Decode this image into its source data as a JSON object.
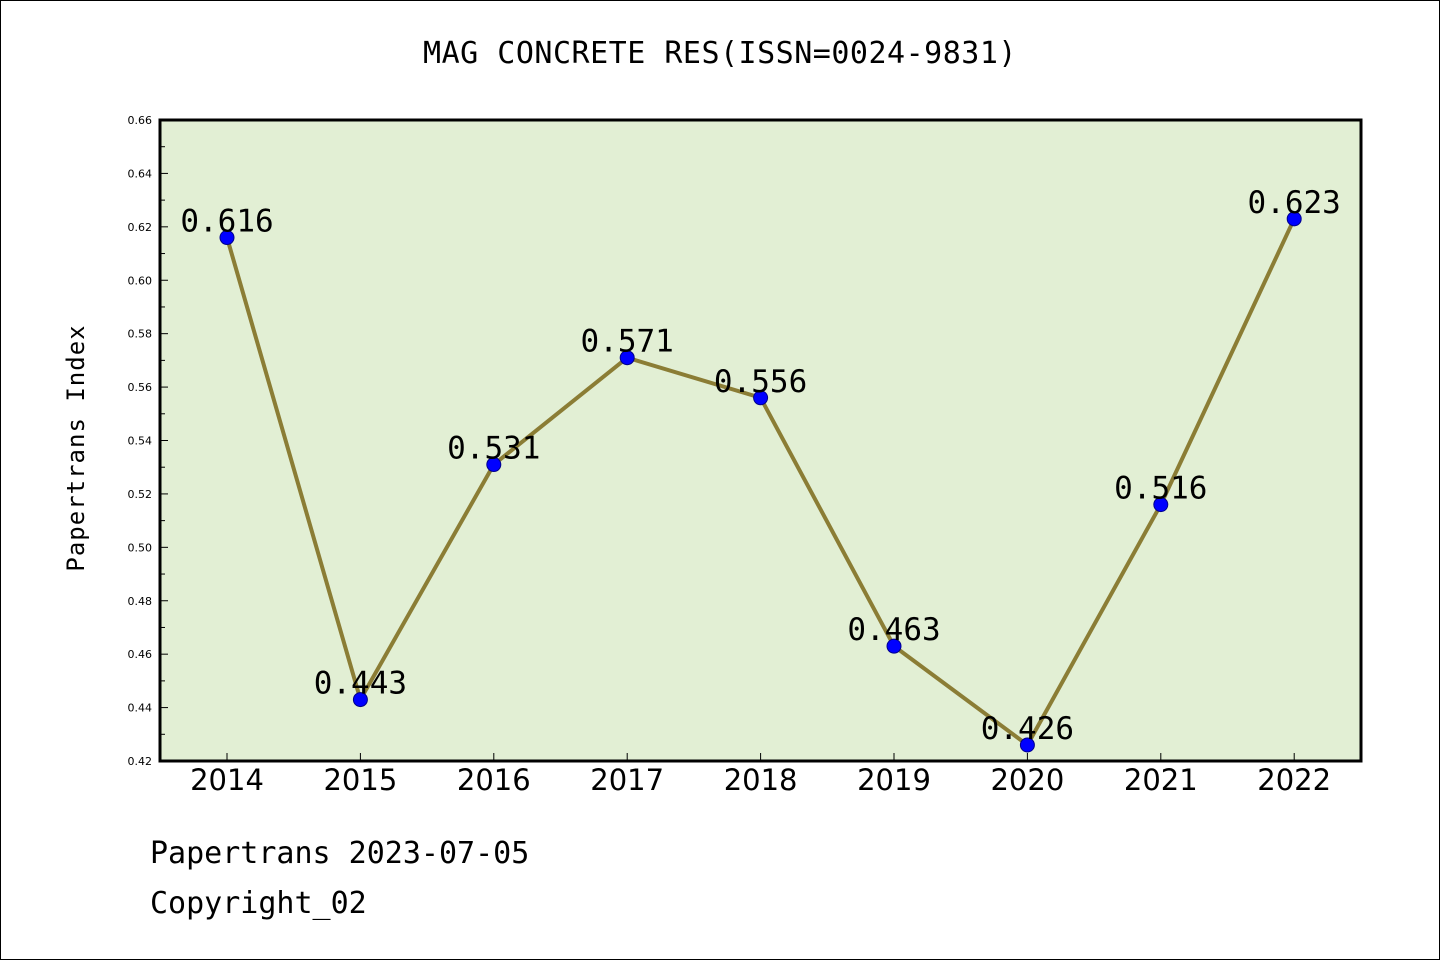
{
  "chart_data": {
    "type": "line",
    "title": "MAG CONCRETE RES(ISSN=0024-9831)",
    "xlabel": "",
    "ylabel": "Papertrans Index",
    "categories": [
      "2014",
      "2015",
      "2016",
      "2017",
      "2018",
      "2019",
      "2020",
      "2021",
      "2022"
    ],
    "values": [
      0.616,
      0.443,
      0.531,
      0.571,
      0.556,
      0.463,
      0.426,
      0.516,
      0.623
    ],
    "data_labels": [
      "0.616",
      "0.443",
      "0.531",
      "0.571",
      "0.556",
      "0.463",
      "0.426",
      "0.516",
      "0.623"
    ],
    "ylim": [
      0.42,
      0.66
    ],
    "y_ticks": [
      "0.42",
      "0.44",
      "0.46",
      "0.48",
      "0.50",
      "0.52",
      "0.54",
      "0.56",
      "0.58",
      "0.60",
      "0.62",
      "0.64",
      "0.66"
    ],
    "grid": false,
    "colors": {
      "plot_background": "#e2efd4",
      "line": "#8b7d35",
      "marker": "#0000ff"
    }
  },
  "footer": {
    "date_line": "Papertrans 2023-07-05",
    "copyright_line": "Copyright_02"
  }
}
